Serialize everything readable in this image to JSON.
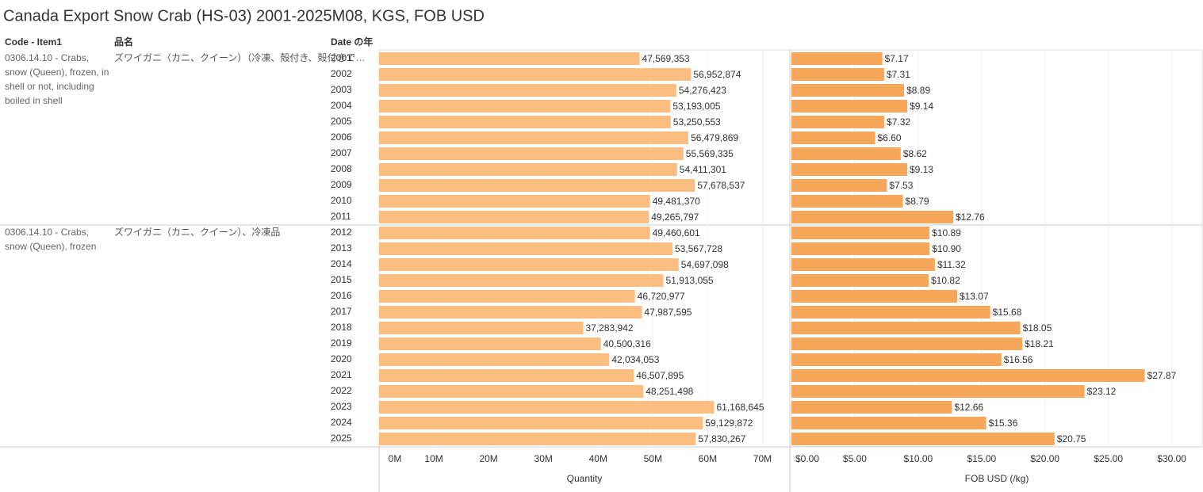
{
  "title": "Canada Export Snow Crab (HS-03) 2001-2025M08, KGS, FOB USD",
  "headers": {
    "code": "Code - Item1",
    "name": "品名",
    "date": "Date の年"
  },
  "groups": [
    {
      "code": "0306.14.10 - Crabs, snow (Queen), frozen, in shell or not, including boiled in shell",
      "name": "ズワイガニ（カニ、クイーン）（冷凍、殻付き、殻付きで…",
      "years": [
        "2001",
        "2002",
        "2003",
        "2004",
        "2005",
        "2006",
        "2007",
        "2008",
        "2009",
        "2010",
        "2011"
      ]
    },
    {
      "code": "0306.14.10 - Crabs, snow (Queen), frozen",
      "name": "ズワイガニ（カニ、クイーン）、冷凍品",
      "years": [
        "2012",
        "2013",
        "2014",
        "2015",
        "2016",
        "2017",
        "2018",
        "2019",
        "2020",
        "2021",
        "2022",
        "2023",
        "2024",
        "2025"
      ]
    }
  ],
  "chart_data": [
    {
      "type": "bar",
      "orientation": "horizontal",
      "x_label": "Quantity",
      "color": "#fcbe80",
      "grid": true,
      "xlim": [
        0,
        75000000
      ],
      "xticks": [
        {
          "value": 0,
          "label": "0M"
        },
        {
          "value": 10000000,
          "label": "10M"
        },
        {
          "value": 20000000,
          "label": "20M"
        },
        {
          "value": 30000000,
          "label": "30M"
        },
        {
          "value": 40000000,
          "label": "40M"
        },
        {
          "value": 50000000,
          "label": "50M"
        },
        {
          "value": 60000000,
          "label": "60M"
        },
        {
          "value": 70000000,
          "label": "70M"
        }
      ],
      "values": [
        47569353,
        56952874,
        54276423,
        53193005,
        53250553,
        56479869,
        55569335,
        54411301,
        57678537,
        49481370,
        49265797,
        49460601,
        53567728,
        54697098,
        51913055,
        46720977,
        47987595,
        37283942,
        40500316,
        42034053,
        46507895,
        48251498,
        61168645,
        59129872,
        57830267
      ],
      "value_labels": [
        "47,569,353",
        "56,952,874",
        "54,276,423",
        "53,193,005",
        "53,250,553",
        "56,479,869",
        "55,569,335",
        "54,411,301",
        "57,678,537",
        "49,481,370",
        "49,265,797",
        "49,460,601",
        "53,567,728",
        "54,697,098",
        "51,913,055",
        "46,720,977",
        "47,987,595",
        "37,283,942",
        "40,500,316",
        "42,034,053",
        "46,507,895",
        "48,251,498",
        "61,168,645",
        "59,129,872",
        "57,830,267"
      ]
    },
    {
      "type": "bar",
      "orientation": "horizontal",
      "x_label": "FOB USD (/kg)",
      "color": "#f6a75a",
      "grid": true,
      "xlim": [
        0,
        32.4
      ],
      "xticks": [
        {
          "value": 0,
          "label": "$0.00"
        },
        {
          "value": 5,
          "label": "$5.00"
        },
        {
          "value": 10,
          "label": "$10.00"
        },
        {
          "value": 15,
          "label": "$15.00"
        },
        {
          "value": 20,
          "label": "$20.00"
        },
        {
          "value": 25,
          "label": "$25.00"
        },
        {
          "value": 30,
          "label": "$30.00"
        }
      ],
      "values": [
        7.17,
        7.31,
        8.89,
        9.14,
        7.32,
        6.6,
        8.62,
        9.13,
        7.53,
        8.79,
        12.76,
        10.89,
        10.9,
        11.32,
        10.82,
        13.07,
        15.68,
        18.05,
        18.21,
        16.56,
        27.87,
        23.12,
        12.66,
        15.36,
        20.75
      ],
      "value_labels": [
        "$7.17",
        "$7.31",
        "$8.89",
        "$9.14",
        "$7.32",
        "$6.60",
        "$8.62",
        "$9.13",
        "$7.53",
        "$8.79",
        "$12.76",
        "$10.89",
        "$10.90",
        "$11.32",
        "$10.82",
        "$13.07",
        "$15.68",
        "$18.05",
        "$18.21",
        "$16.56",
        "$27.87",
        "$23.12",
        "$12.66",
        "$15.36",
        "$20.75"
      ]
    }
  ]
}
